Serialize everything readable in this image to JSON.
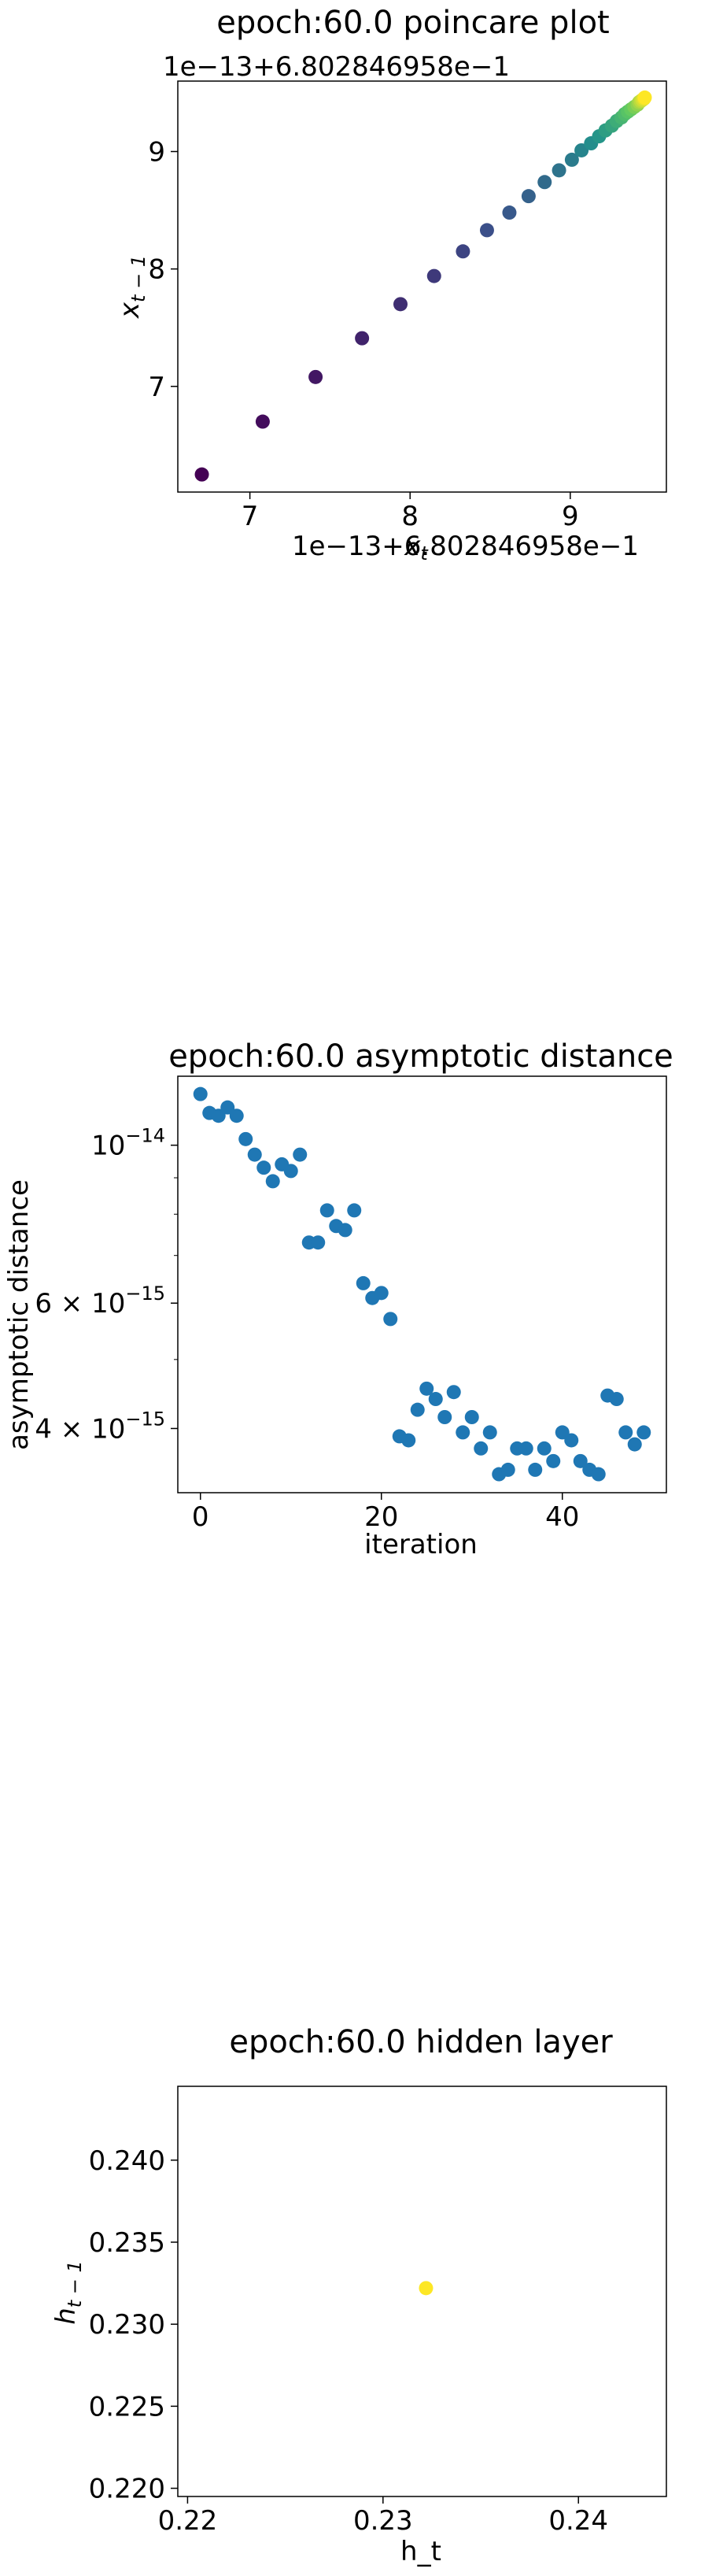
{
  "chart_data": [
    {
      "type": "scatter",
      "title": "epoch:60.0 poincare plot",
      "xlabel": "x_t",
      "ylabel": "x_{t-1}",
      "x_offset_label": "1e−13+6.802846958e−1",
      "y_offset_label": "1e−13+6.802846958e−1",
      "xlim": [
        6.55,
        9.6
      ],
      "ylim": [
        6.1,
        9.6
      ],
      "x_ticks": [
        7,
        8,
        9
      ],
      "y_ticks": [
        7,
        8,
        9
      ],
      "colormap": "viridis",
      "x": [
        6.7,
        7.08,
        7.41,
        7.7,
        7.94,
        8.15,
        8.33,
        8.48,
        8.62,
        8.74,
        8.84,
        8.93,
        9.01,
        9.07,
        9.13,
        9.18,
        9.22,
        9.26,
        9.29,
        9.32,
        9.34,
        9.36,
        9.38,
        9.4,
        9.42,
        9.43,
        9.44,
        9.45,
        9.46,
        9.465
      ],
      "y": [
        6.25,
        6.7,
        7.08,
        7.41,
        7.7,
        7.94,
        8.15,
        8.33,
        8.48,
        8.62,
        8.74,
        8.84,
        8.93,
        9.01,
        9.07,
        9.13,
        9.18,
        9.22,
        9.26,
        9.29,
        9.32,
        9.34,
        9.36,
        9.38,
        9.4,
        9.42,
        9.43,
        9.44,
        9.45,
        9.46
      ]
    },
    {
      "type": "scatter",
      "title": "epoch:60.0 asymptotic distance",
      "xlabel": "iteration",
      "ylabel": "asymptotic distance",
      "yscale": "log",
      "xlim": [
        -2.5,
        51.5
      ],
      "ylim": [
        3.25e-15,
        1.25e-14
      ],
      "x_ticks": [
        0,
        20,
        40
      ],
      "y_ticks": [
        {
          "value": 1e-14,
          "base": "10",
          "exp": "−14"
        },
        {
          "value": 6e-15,
          "base": "6 × 10",
          "exp": "−15"
        },
        {
          "value": 4e-15,
          "base": "4 × 10",
          "exp": "−15"
        }
      ],
      "color": "#1f77b4",
      "x": [
        0,
        1,
        2,
        3,
        4,
        5,
        6,
        7,
        8,
        9,
        10,
        11,
        12,
        13,
        14,
        15,
        16,
        17,
        18,
        19,
        20,
        21,
        22,
        23,
        24,
        25,
        26,
        27,
        28,
        29,
        30,
        31,
        32,
        33,
        34,
        35,
        36,
        37,
        38,
        39,
        40,
        41,
        42,
        43,
        44,
        45,
        46,
        47,
        48,
        49
      ],
      "y": [
        1.18e-14,
        1.11e-14,
        1.1e-14,
        1.13e-14,
        1.1e-14,
        1.02e-14,
        9.7e-15,
        9.3e-15,
        8.9e-15,
        9.4e-15,
        9.2e-15,
        9.7e-15,
        7.3e-15,
        7.3e-15,
        8.1e-15,
        7.7e-15,
        7.6e-15,
        8.1e-15,
        6.4e-15,
        6.1e-15,
        6.2e-15,
        5.7e-15,
        3.9e-15,
        3.85e-15,
        4.25e-15,
        4.55e-15,
        4.4e-15,
        4.15e-15,
        4.5e-15,
        3.95e-15,
        4.15e-15,
        3.75e-15,
        3.95e-15,
        3.45e-15,
        3.5e-15,
        3.75e-15,
        3.75e-15,
        3.5e-15,
        3.75e-15,
        3.6e-15,
        3.95e-15,
        3.85e-15,
        3.6e-15,
        3.5e-15,
        3.45e-15,
        4.45e-15,
        4.4e-15,
        3.95e-15,
        3.8e-15,
        3.95e-15
      ]
    },
    {
      "type": "scatter",
      "title": "epoch:60.0 hidden layer",
      "xlabel": "h_t",
      "ylabel": "h_{t-1}",
      "xlim": [
        0.2195,
        0.2445
      ],
      "ylim": [
        0.2195,
        0.2445
      ],
      "x_ticks": [
        0.22,
        0.23,
        0.24
      ],
      "y_ticks": [
        0.22,
        0.225,
        0.23,
        0.235,
        0.24
      ],
      "x_tick_labels": [
        "0.22",
        "0.23",
        "0.24"
      ],
      "y_tick_labels": [
        "0.220",
        "0.225",
        "0.230",
        "0.235",
        "0.240"
      ],
      "color": "#fde725",
      "x": [
        0.2322
      ],
      "y": [
        0.2322
      ]
    }
  ]
}
